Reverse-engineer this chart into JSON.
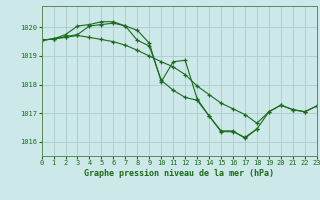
{
  "title": "Graphe pression niveau de la mer (hPa)",
  "background_color": "#cce8e8",
  "grid_color": "#aacccc",
  "line_color": "#1a6b1a",
  "xlim": [
    0,
    23
  ],
  "ylim": [
    1015.5,
    1020.75
  ],
  "yticks": [
    1016,
    1017,
    1018,
    1019,
    1020
  ],
  "xticks": [
    0,
    1,
    2,
    3,
    4,
    5,
    6,
    7,
    8,
    9,
    10,
    11,
    12,
    13,
    14,
    15,
    16,
    17,
    18,
    19,
    20,
    21,
    22,
    23
  ],
  "series": [
    {
      "x": [
        0,
        1,
        2,
        3,
        4,
        5,
        6,
        7,
        8,
        9,
        10,
        11,
        12,
        13,
        14,
        15,
        16,
        17,
        18
      ],
      "y": [
        1019.55,
        1019.6,
        1019.75,
        1020.05,
        1020.1,
        1020.2,
        1020.2,
        1020.05,
        1019.9,
        1019.45,
        1018.1,
        1018.8,
        1018.85,
        1017.5,
        1016.9,
        1016.35,
        1016.35,
        1016.15,
        1016.45
      ]
    },
    {
      "x": [
        0,
        1,
        2,
        3,
        4,
        5,
        6,
        7,
        8,
        9,
        10,
        11,
        12,
        13,
        14,
        15,
        16,
        17,
        18,
        19,
        20,
        21,
        22,
        23
      ],
      "y": [
        1019.55,
        1019.6,
        1019.65,
        1019.72,
        1019.65,
        1019.58,
        1019.5,
        1019.38,
        1019.2,
        1019.0,
        1018.8,
        1018.62,
        1018.35,
        1017.95,
        1017.65,
        1017.35,
        1017.15,
        1016.95,
        1016.65,
        1017.05,
        1017.28,
        1017.12,
        1017.05,
        1017.25
      ]
    },
    {
      "x": [
        0,
        1,
        2,
        3,
        4,
        5,
        6,
        7,
        8,
        9,
        10,
        11,
        12,
        13,
        14,
        15,
        16,
        17,
        18,
        19,
        20,
        21,
        22,
        23
      ],
      "y": [
        1019.55,
        1019.6,
        1019.68,
        1019.75,
        1020.05,
        1020.1,
        1020.15,
        1020.05,
        1019.55,
        1019.35,
        1018.15,
        1017.8,
        1017.55,
        1017.45,
        1016.9,
        1016.38,
        1016.38,
        1016.12,
        1016.45,
        1017.05,
        1017.28,
        1017.12,
        1017.05,
        1017.25
      ]
    }
  ]
}
